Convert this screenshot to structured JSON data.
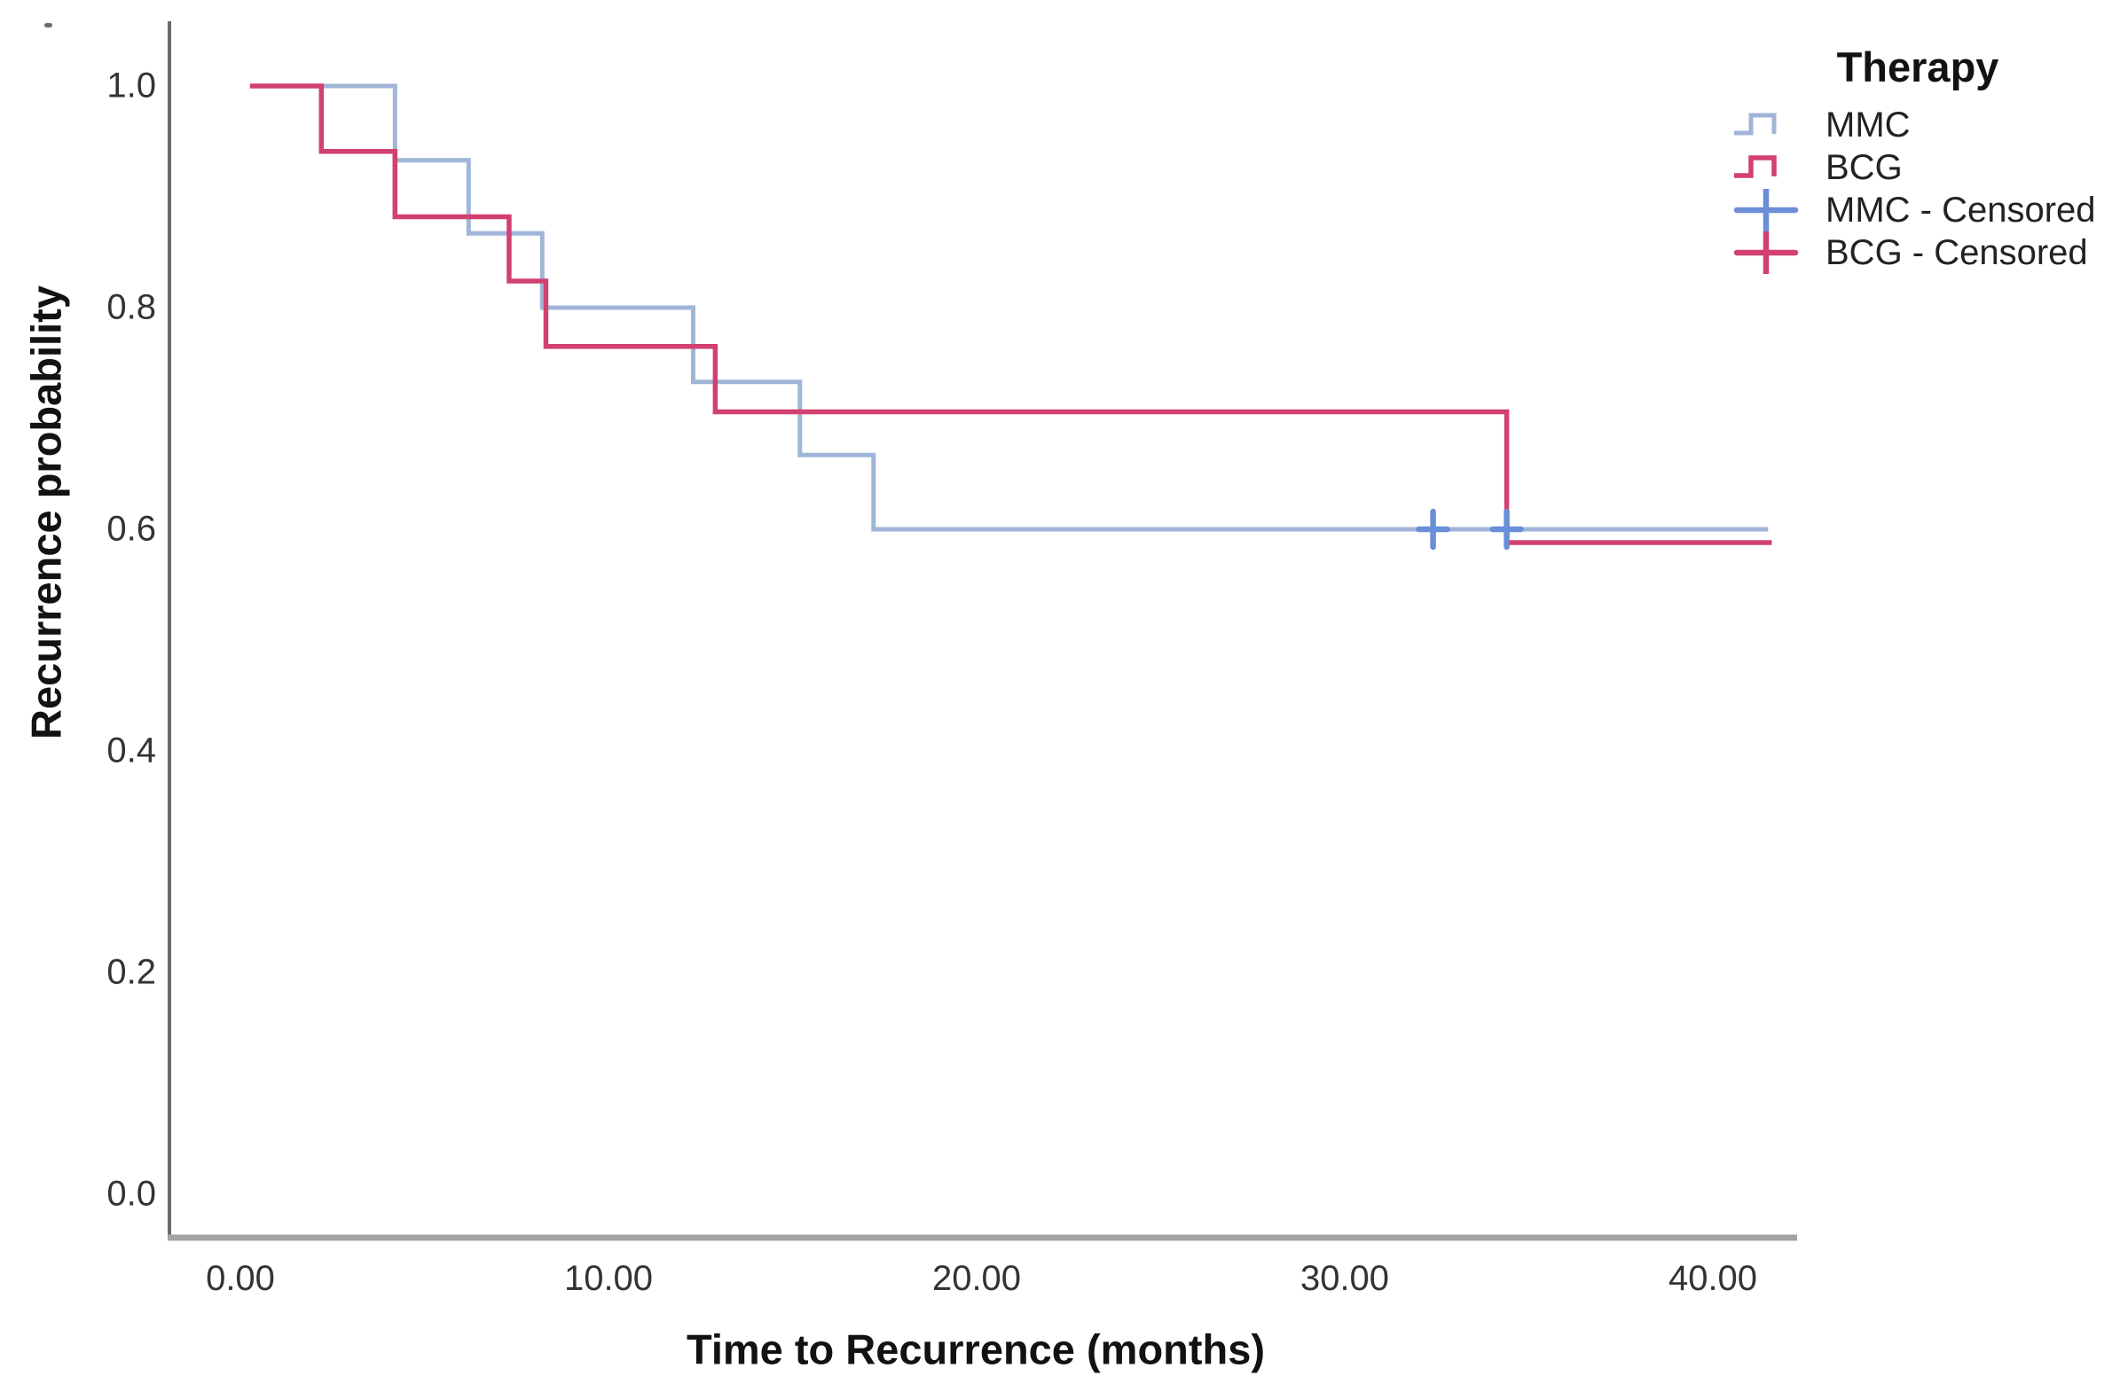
{
  "figure": {
    "background": "#ffffff"
  },
  "chart_data": {
    "type": "line",
    "subtype": "kaplan_meier_step_plot",
    "title": "",
    "xlabel": "Time to Recurrence (months)",
    "ylabel": "Recurrence probability",
    "x_ticks": [
      0,
      10,
      20,
      30,
      40
    ],
    "x_tick_labels": [
      "0.00",
      "10.00",
      "20.00",
      "30.00",
      "40.00"
    ],
    "y_ticks": [
      0.0,
      0.2,
      0.4,
      0.6,
      0.8,
      1.0
    ],
    "y_tick_labels": [
      "0.0",
      "0.2",
      "0.4",
      "0.6",
      "0.8",
      "1.0"
    ],
    "xlim": [
      0,
      42.3
    ],
    "ylim": [
      0,
      1.06
    ],
    "grid": false,
    "legend": {
      "title": "Therapy",
      "position": "top-right",
      "entries": [
        {
          "label": "MMC",
          "symbol": "step",
          "color": "#a0b5d8"
        },
        {
          "label": "BCG",
          "symbol": "step",
          "color": "#d14070"
        },
        {
          "label": "MMC - Censored",
          "symbol": "plus",
          "color": "#6a8ed8"
        },
        {
          "label": "BCG - Censored",
          "symbol": "plus",
          "color": "#d14070"
        }
      ]
    },
    "series": [
      {
        "name": "MMC",
        "color": "#a0b5d8",
        "censor_color": "#6a8ed8",
        "steps": [
          [
            0.26,
            1.0
          ],
          [
            4.2,
            0.933
          ],
          [
            6.2,
            0.867
          ],
          [
            8.2,
            0.8
          ],
          [
            12.3,
            0.733
          ],
          [
            15.2,
            0.667
          ],
          [
            17.2,
            0.6
          ]
        ],
        "end_time": 41.5,
        "censored": [
          [
            32.4,
            0.6
          ],
          [
            34.4,
            0.6
          ]
        ]
      },
      {
        "name": "BCG",
        "color": "#d14070",
        "censor_color": "#d14070",
        "steps": [
          [
            0.26,
            1.0
          ],
          [
            2.2,
            0.941
          ],
          [
            4.2,
            0.882
          ],
          [
            7.3,
            0.824
          ],
          [
            8.3,
            0.765
          ],
          [
            12.9,
            0.706
          ],
          [
            34.4,
            0.588
          ]
        ],
        "end_time": 41.6,
        "censored": []
      }
    ]
  }
}
